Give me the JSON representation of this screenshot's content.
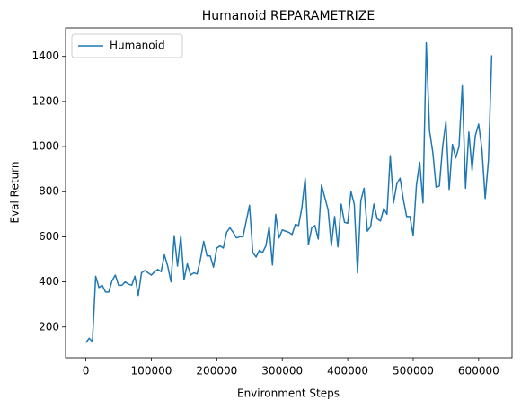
{
  "chart_data": {
    "type": "line",
    "title": "Humanoid REPARAMETRIZE",
    "x_label": "Environment Steps",
    "y_label": "Eval Return",
    "x": [
      0,
      5000,
      10000,
      15000,
      20000,
      25000,
      30000,
      35000,
      40000,
      45000,
      50000,
      55000,
      60000,
      65000,
      70000,
      75000,
      80000,
      85000,
      90000,
      95000,
      100000,
      105000,
      110000,
      115000,
      120000,
      125000,
      130000,
      135000,
      140000,
      145000,
      150000,
      155000,
      160000,
      165000,
      170000,
      175000,
      180000,
      185000,
      190000,
      195000,
      200000,
      205000,
      210000,
      215000,
      220000,
      225000,
      230000,
      235000,
      240000,
      245000,
      250000,
      255000,
      260000,
      265000,
      270000,
      275000,
      280000,
      285000,
      290000,
      295000,
      300000,
      305000,
      310000,
      315000,
      320000,
      325000,
      330000,
      335000,
      340000,
      345000,
      350000,
      355000,
      360000,
      365000,
      370000,
      375000,
      380000,
      385000,
      390000,
      395000,
      400000,
      405000,
      410000,
      415000,
      420000,
      425000,
      430000,
      435000,
      440000,
      445000,
      450000,
      455000,
      460000,
      465000,
      470000,
      475000,
      480000,
      485000,
      490000,
      495000,
      500000,
      505000,
      510000,
      515000,
      520000,
      525000,
      530000,
      535000,
      540000,
      545000,
      550000,
      555000,
      560000,
      565000,
      570000,
      575000,
      580000,
      585000,
      590000,
      595000,
      600000,
      605000,
      610000,
      615000,
      620000
    ],
    "series": [
      {
        "name": "Humanoid",
        "color": "#1f77b4",
        "values": [
          130,
          150,
          135,
          425,
          375,
          385,
          355,
          355,
          405,
          430,
          385,
          385,
          400,
          390,
          385,
          425,
          340,
          440,
          450,
          440,
          430,
          445,
          455,
          445,
          520,
          470,
          400,
          605,
          470,
          605,
          410,
          480,
          430,
          440,
          435,
          500,
          580,
          515,
          515,
          465,
          550,
          560,
          550,
          620,
          640,
          620,
          595,
          600,
          600,
          670,
          740,
          530,
          510,
          540,
          530,
          560,
          645,
          475,
          700,
          595,
          630,
          625,
          620,
          610,
          655,
          650,
          730,
          860,
          565,
          640,
          650,
          590,
          830,
          775,
          720,
          560,
          690,
          555,
          745,
          665,
          660,
          800,
          745,
          440,
          760,
          815,
          625,
          645,
          745,
          680,
          670,
          725,
          700,
          960,
          750,
          835,
          860,
          765,
          690,
          690,
          605,
          830,
          930,
          750,
          1460,
          1070,
          975,
          820,
          825,
          1000,
          1110,
          810,
          1010,
          950,
          1000,
          1270,
          815,
          1065,
          895,
          1050,
          1100,
          990,
          770,
          940,
          1405
        ]
      }
    ],
    "xlim": [
      -31000,
      651000
    ],
    "xticks": [
      0,
      100000,
      200000,
      300000,
      400000,
      500000,
      600000
    ],
    "ylim": [
      63.5,
      1526.5
    ],
    "yticks": [
      200,
      400,
      600,
      800,
      1000,
      1200,
      1400
    ],
    "legend": "upper left",
    "grid": false
  }
}
